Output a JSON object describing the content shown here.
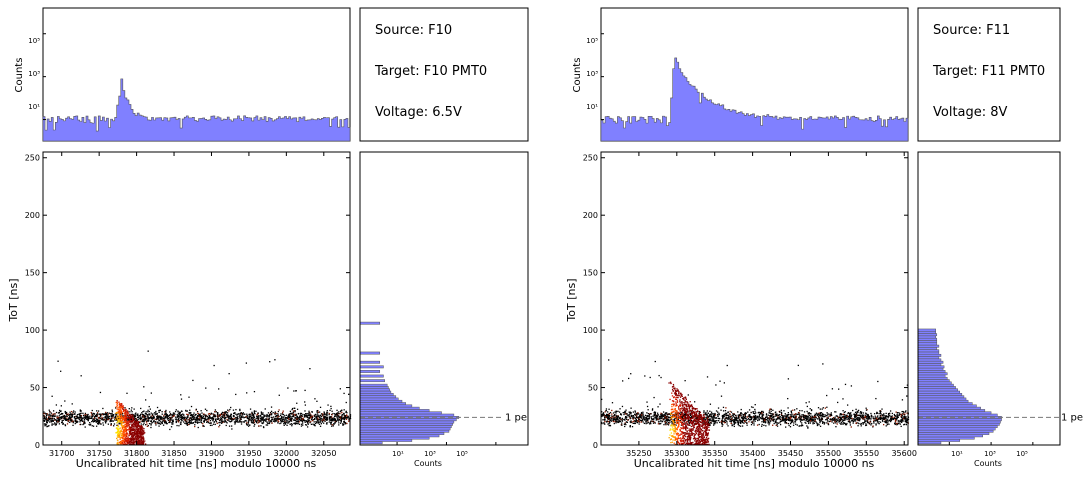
{
  "chart_data": [
    {
      "panel": "left",
      "type": "heatmap",
      "source": "Source: F10",
      "target": "Target: F10 PMT0",
      "voltage": "Voltage: 6.5V",
      "xlabel": "Uncalibrated hit time [ns] modulo 10000 ns",
      "ylabel": "ToT [ns]",
      "xlim": [
        31675,
        32085
      ],
      "ylim": [
        0,
        255
      ],
      "xticks": [
        31700,
        31750,
        31800,
        31850,
        31900,
        31950,
        32000,
        32050
      ],
      "yticks": [
        0,
        50,
        100,
        150,
        200,
        250
      ],
      "peak_time": 31777,
      "one_pe_label": "1 pe",
      "one_pe_tot": 24,
      "top_hist": {
        "ylabel": "Counts",
        "yticks": [
          "10¹",
          "10³",
          "10⁵"
        ],
        "log_ylim": [
          0,
          6.2
        ],
        "baseline_log_counts": 1.0,
        "peak_log_counts": 3.1
      },
      "side_hist": {
        "xlabel": "Counts",
        "xticks": [
          "10¹",
          "10³",
          "10⁵"
        ],
        "log_xlim": [
          -0.5,
          6.3
        ],
        "tot": [
          2,
          4,
          6,
          8,
          10,
          12,
          14,
          16,
          18,
          20,
          22,
          24,
          26,
          28,
          30,
          32,
          34,
          36,
          38,
          40,
          42,
          44,
          46,
          48,
          50,
          52,
          56,
          60,
          64,
          68,
          72,
          80,
          106
        ],
        "log_counts": [
          0.4,
          1.6,
          2.3,
          2.7,
          2.9,
          3.1,
          3.15,
          3.2,
          3.25,
          3.3,
          3.4,
          3.5,
          3.3,
          2.8,
          2.3,
          1.9,
          1.6,
          1.35,
          1.2,
          1.05,
          0.95,
          0.85,
          0.75,
          0.7,
          0.65,
          0.6,
          0.5,
          0.45,
          0.3,
          0.45,
          0.3,
          0.3,
          0.3
        ]
      }
    },
    {
      "panel": "right",
      "type": "heatmap",
      "source": "Source: F11",
      "target": "Target: F11 PMT0",
      "voltage": "Voltage: 8V",
      "xlabel": "Uncalibrated hit time [ns] modulo 10000 ns",
      "ylabel": "ToT [ns]",
      "xlim": [
        35200,
        35605
      ],
      "ylim": [
        0,
        255
      ],
      "xticks": [
        35250,
        35300,
        35350,
        35400,
        35450,
        35500,
        35550,
        35600
      ],
      "yticks": [
        0,
        50,
        100,
        150,
        200,
        250
      ],
      "peak_time": 35295,
      "one_pe_label": "1 pe",
      "one_pe_tot": 24,
      "top_hist": {
        "ylabel": "Counts",
        "yticks": [
          "10¹",
          "10³",
          "10⁵"
        ],
        "log_ylim": [
          0,
          6.2
        ],
        "baseline_log_counts": 1.0,
        "peak_log_counts": 3.9
      },
      "side_hist": {
        "xlabel": "Counts",
        "xticks": [
          "10¹",
          "10³",
          "10⁵"
        ],
        "log_xlim": [
          -0.5,
          6.3
        ],
        "tot": [
          2,
          4,
          6,
          8,
          10,
          12,
          14,
          16,
          18,
          20,
          22,
          24,
          26,
          28,
          30,
          32,
          34,
          36,
          38,
          40,
          42,
          44,
          46,
          48,
          50,
          52,
          54,
          56,
          58,
          60,
          62,
          64,
          66,
          68,
          70,
          72,
          74,
          76,
          78,
          80,
          82,
          84,
          86,
          88,
          90,
          92,
          94,
          96,
          98,
          100
        ],
        "log_counts": [
          0.6,
          1.5,
          2.2,
          2.6,
          2.9,
          3.1,
          3.2,
          3.3,
          3.4,
          3.45,
          3.5,
          3.5,
          3.3,
          3.0,
          2.7,
          2.5,
          2.3,
          2.1,
          1.9,
          1.8,
          1.7,
          1.6,
          1.5,
          1.4,
          1.3,
          1.2,
          1.1,
          1.0,
          0.9,
          0.8,
          0.9,
          0.8,
          0.7,
          0.75,
          0.6,
          0.7,
          0.6,
          0.5,
          0.6,
          0.5,
          0.5,
          0.4,
          0.5,
          0.4,
          0.4,
          0.4,
          0.35,
          0.4,
          0.35,
          0.35
        ]
      }
    }
  ]
}
